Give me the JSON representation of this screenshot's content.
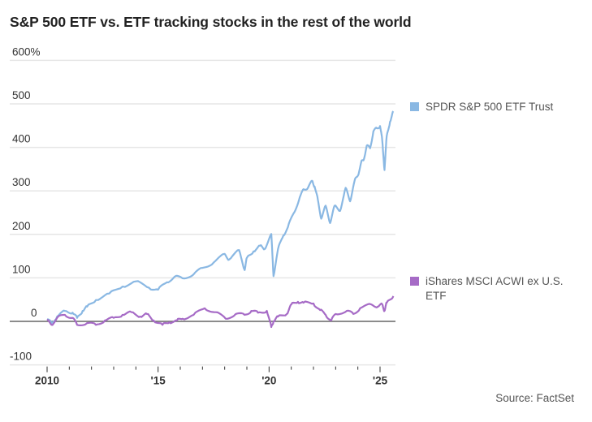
{
  "chart_data": {
    "type": "line",
    "title": "S&P 500 ETF vs. ETF tracking stocks in the rest of the world",
    "xlabel": "",
    "ylabel": "",
    "source": "Source: FactSet",
    "ylim": [
      -100,
      600
    ],
    "yticks": [
      600,
      500,
      400,
      300,
      200,
      100,
      0,
      -100
    ],
    "ytick_labels": [
      "600%",
      "500",
      "400",
      "300",
      "200",
      "100",
      "0",
      "-100"
    ],
    "xlim": [
      2009.0,
      2025.7
    ],
    "xticks": [
      2010,
      2011,
      2012,
      2013,
      2014,
      2015,
      2016,
      2017,
      2018,
      2019,
      2020,
      2021,
      2022,
      2023,
      2024,
      2025
    ],
    "xtick_labels": [
      {
        "year": 2010,
        "label": "2010"
      },
      {
        "year": 2015,
        "label": "'15"
      },
      {
        "year": 2020,
        "label": "'20"
      },
      {
        "year": 2025,
        "label": "'25"
      }
    ],
    "grid": true,
    "legend_placement": "right, at series ends",
    "series": [
      {
        "name": "SPDR S&P 500 ETF Trust",
        "color": "#8ab8e3",
        "x": [
          2010.0,
          2010.2,
          2010.45,
          2010.8,
          2011.15,
          2011.35,
          2011.6,
          2011.8,
          2012.2,
          2012.8,
          2013.4,
          2014.0,
          2014.6,
          2015.0,
          2015.4,
          2015.75,
          2016.1,
          2016.6,
          2017.0,
          2017.5,
          2018.0,
          2018.2,
          2018.65,
          2018.9,
          2019.0,
          2019.3,
          2019.6,
          2019.8,
          2020.1,
          2020.2,
          2020.4,
          2020.65,
          2020.85,
          2021.1,
          2021.35,
          2021.55,
          2021.75,
          2021.95,
          2022.05,
          2022.2,
          2022.35,
          2022.55,
          2022.75,
          2022.95,
          2023.2,
          2023.45,
          2023.65,
          2023.85,
          2024.0,
          2024.15,
          2024.25,
          2024.4,
          2024.55,
          2024.7,
          2024.85,
          2025.0,
          2025.1,
          2025.2,
          2025.3,
          2025.45,
          2025.6
        ],
        "values": [
          5,
          -4,
          11,
          24,
          20,
          8,
          24,
          34,
          49,
          64,
          80,
          92,
          77,
          73,
          90,
          103,
          99,
          108,
          123,
          135,
          155,
          142,
          164,
          118,
          146,
          161,
          174,
          166,
          201,
          104,
          166,
          198,
          217,
          248,
          279,
          304,
          307,
          323,
          310,
          279,
          236,
          266,
          226,
          266,
          254,
          307,
          276,
          323,
          335,
          366,
          370,
          404,
          398,
          437,
          444,
          449,
          416,
          348,
          426,
          459,
          483
        ]
      },
      {
        "name": "iShares MSCI ACWI ex U.S. ETF",
        "color": "#a66bc6",
        "x": [
          2010.0,
          2010.2,
          2010.45,
          2010.8,
          2011.15,
          2011.35,
          2011.8,
          2012.2,
          2012.6,
          2013.0,
          2013.4,
          2013.8,
          2014.2,
          2014.5,
          2014.8,
          2015.2,
          2015.5,
          2015.85,
          2016.1,
          2016.6,
          2017.1,
          2017.6,
          2018.05,
          2018.5,
          2018.9,
          2019.2,
          2019.5,
          2019.9,
          2020.1,
          2020.2,
          2020.4,
          2020.8,
          2021.0,
          2021.3,
          2021.55,
          2022.0,
          2022.3,
          2022.55,
          2022.8,
          2023.0,
          2023.5,
          2023.8,
          2024.1,
          2024.6,
          2024.9,
          2025.1,
          2025.2,
          2025.3,
          2025.6
        ],
        "values": [
          2,
          -8,
          8,
          15,
          8,
          -8,
          -4,
          -8,
          2,
          8,
          15,
          21,
          11,
          17,
          2,
          -8,
          -2,
          2,
          6,
          15,
          30,
          21,
          6,
          17,
          15,
          24,
          20,
          24,
          -13,
          0,
          11,
          17,
          39,
          45,
          43,
          41,
          26,
          15,
          2,
          17,
          24,
          17,
          30,
          39,
          34,
          39,
          24,
          43,
          58
        ]
      }
    ]
  }
}
